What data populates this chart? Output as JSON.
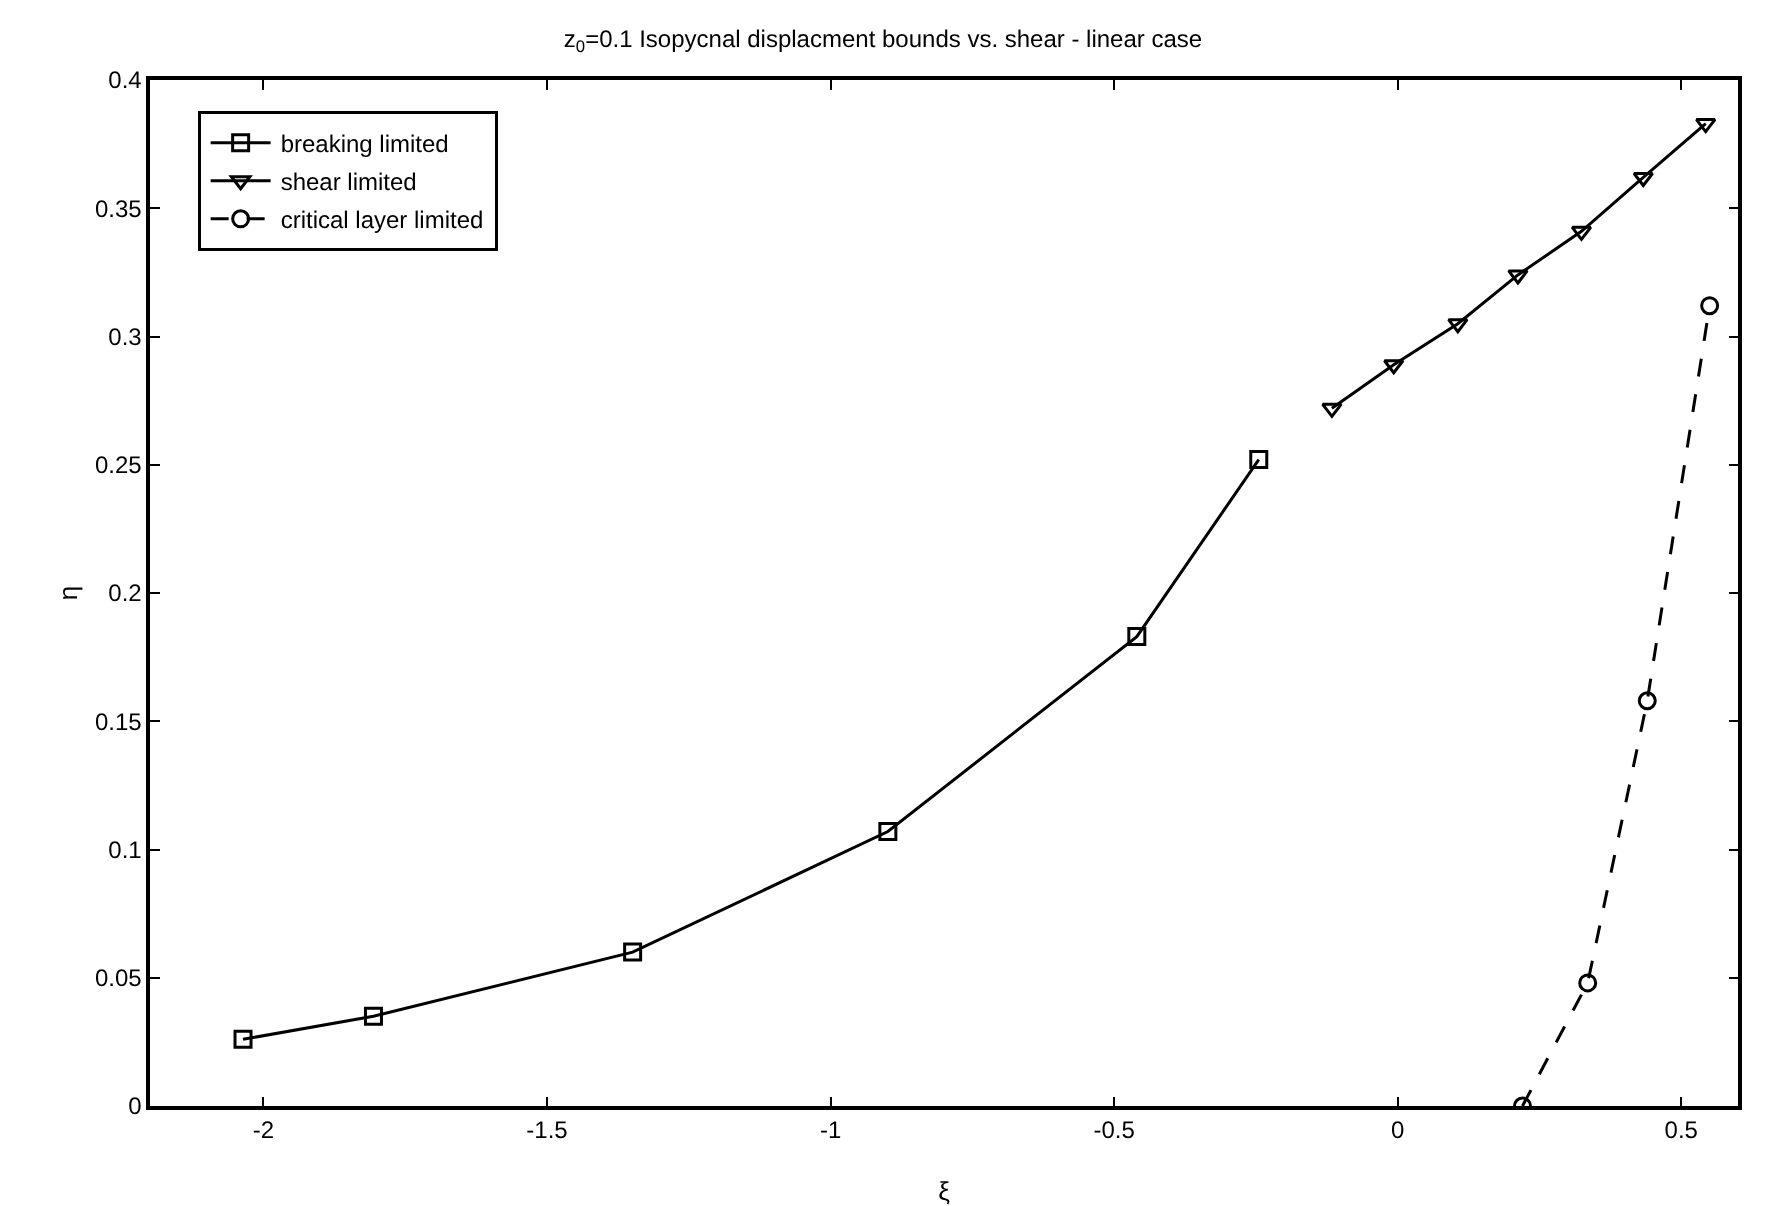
{
  "chart_data": {
    "type": "line",
    "title": "z$_{0}$=0.1 Isopycnal displacment bounds vs. shear - linear case",
    "xlabel": "ξ",
    "ylabel": "η",
    "xlim": [
      -2.2,
      0.6
    ],
    "xticks": [
      -2,
      -1.5,
      -1,
      -0.5,
      0,
      0.5
    ],
    "ylim": [
      0,
      0.4
    ],
    "yticks": [
      0,
      0.05,
      0.1,
      0.15,
      0.2,
      0.25,
      0.3,
      0.35,
      0.4
    ],
    "grid": false,
    "legend": "top left",
    "series": [
      {
        "name": "breaking limited",
        "color": "#000000",
        "marker": "square",
        "line_style": "solid",
        "x": [
          -2.036,
          -1.806,
          -1.349,
          -0.899,
          -0.46,
          -0.245
        ],
        "values": [
          0.026,
          0.035,
          0.06,
          0.107,
          0.183,
          0.252
        ]
      },
      {
        "name": "shear limited",
        "color": "#000000",
        "marker": "triangle",
        "line_style": "solid",
        "x": [
          -0.116,
          -0.007,
          0.106,
          0.212,
          0.324,
          0.433,
          0.543
        ],
        "values": [
          0.272,
          0.289,
          0.305,
          0.324,
          0.341,
          0.362,
          0.383
        ]
      },
      {
        "name": "critical layer limited",
        "color": "#000000",
        "marker": "circle",
        "line_style": "dashed",
        "x": [
          0.22,
          0.335,
          0.44,
          0.55
        ],
        "values": [
          0,
          0.048,
          0.158,
          0.312
        ]
      }
    ]
  }
}
